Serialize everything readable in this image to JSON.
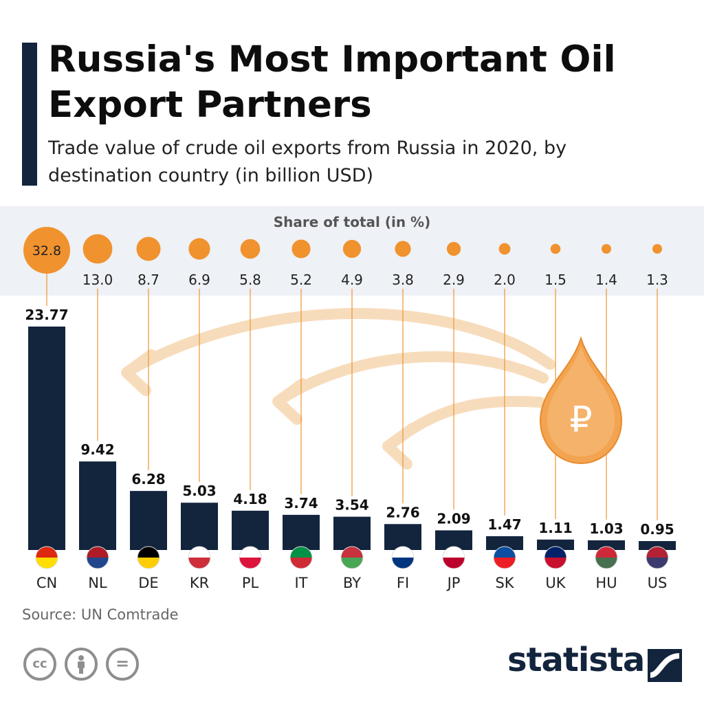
{
  "header": {
    "title": "Russia's Most Important Oil Export Partners",
    "subtitle": "Trade value of crude oil exports from Russia in 2020, by destination country (in billion USD)"
  },
  "share_label": "Share of total (in %)",
  "footer": {
    "source": "Source: UN Comtrade",
    "logo": "statista",
    "license_icons": [
      "cc-icon",
      "by-icon",
      "nd-icon"
    ]
  },
  "colors": {
    "bar": "#13243d",
    "accent": "#f0922e",
    "band": "#eef1f5",
    "arrow": "#f7dcbc"
  },
  "icons": {
    "drop": "ruble-oil-drop-icon",
    "drop_symbol": "₽"
  },
  "chart_data": {
    "type": "bar",
    "categories": [
      "CN",
      "NL",
      "DE",
      "KR",
      "PL",
      "IT",
      "BY",
      "FI",
      "JP",
      "SK",
      "UK",
      "HU",
      "US"
    ],
    "values": [
      23.77,
      9.42,
      6.28,
      5.03,
      4.18,
      3.74,
      3.54,
      2.76,
      2.09,
      1.47,
      1.11,
      1.03,
      0.95
    ],
    "share": [
      "32.8",
      "13.0",
      "8.7",
      "6.9",
      "5.8",
      "5.2",
      "4.9",
      "3.8",
      "2.9",
      "2.0",
      "1.5",
      "1.4",
      "1.3"
    ],
    "title": "Russia's Most Important Oil Export Partners",
    "xlabel": "",
    "ylabel": "",
    "ylim": [
      0,
      23.77
    ],
    "grid": false,
    "legend": "none"
  }
}
